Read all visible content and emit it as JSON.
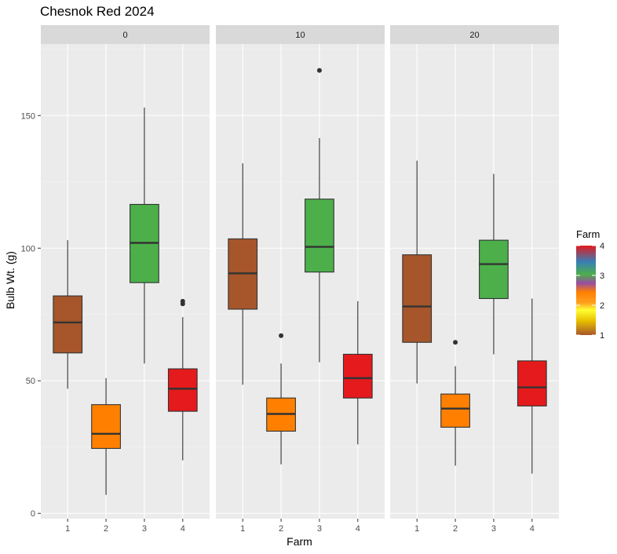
{
  "chart_data": {
    "type": "boxplot",
    "title": "Chesnok Red 2024",
    "xlabel": "Farm",
    "ylabel": "Bulb Wt. (g)",
    "ylim": [
      -2,
      177
    ],
    "yticks": [
      0,
      50,
      100,
      150
    ],
    "categories": [
      "1",
      "2",
      "3",
      "4"
    ],
    "category_colors": [
      "#a6562a",
      "#ff8000",
      "#4caf4a",
      "#e41a1c"
    ],
    "panels": [
      {
        "label": "0",
        "boxes": [
          {
            "farm": "1",
            "min": 47,
            "q1": 60.5,
            "median": 72,
            "q3": 82,
            "max": 103,
            "outliers": []
          },
          {
            "farm": "2",
            "min": 7,
            "q1": 24.5,
            "median": 30,
            "q3": 41,
            "max": 51,
            "outliers": []
          },
          {
            "farm": "3",
            "min": 56.5,
            "q1": 87,
            "median": 102,
            "q3": 116.5,
            "max": 153,
            "outliers": []
          },
          {
            "farm": "4",
            "min": 20,
            "q1": 38.5,
            "median": 47,
            "q3": 54.5,
            "max": 74,
            "outliers": [
              79,
              80
            ]
          }
        ]
      },
      {
        "label": "10",
        "boxes": [
          {
            "farm": "1",
            "min": 48.5,
            "q1": 77,
            "median": 90.5,
            "q3": 103.5,
            "max": 132,
            "outliers": []
          },
          {
            "farm": "2",
            "min": 18.5,
            "q1": 31,
            "median": 37.5,
            "q3": 43.5,
            "max": 56.5,
            "outliers": [
              67
            ]
          },
          {
            "farm": "3",
            "min": 57,
            "q1": 91,
            "median": 100.5,
            "q3": 118.5,
            "max": 141.5,
            "outliers": [
              167
            ]
          },
          {
            "farm": "4",
            "min": 26,
            "q1": 43.5,
            "median": 51,
            "q3": 60,
            "max": 80,
            "outliers": []
          }
        ]
      },
      {
        "label": "20",
        "boxes": [
          {
            "farm": "1",
            "min": 49,
            "q1": 64.5,
            "median": 78,
            "q3": 97.5,
            "max": 133,
            "outliers": []
          },
          {
            "farm": "2",
            "min": 18,
            "q1": 32.5,
            "median": 39.5,
            "q3": 45,
            "max": 55.5,
            "outliers": [
              64.5
            ]
          },
          {
            "farm": "3",
            "min": 60,
            "q1": 81,
            "median": 94,
            "q3": 103,
            "max": 128,
            "outliers": []
          },
          {
            "farm": "4",
            "min": 15,
            "q1": 40.5,
            "median": 47.5,
            "q3": 57.5,
            "max": 81,
            "outliers": []
          }
        ]
      }
    ],
    "legend": {
      "title": "Farm",
      "placement": "right",
      "labels": [
        "4",
        "3",
        "2",
        "1"
      ],
      "values": [
        4,
        3,
        2,
        1
      ],
      "range": [
        1,
        4
      ]
    },
    "colors": {
      "panel_bg": "#ebebeb",
      "strip_bg": "#d9d9d9",
      "grid_major": "#ffffff",
      "grid_minor": "#f5f5f5",
      "line": "#333333"
    }
  }
}
